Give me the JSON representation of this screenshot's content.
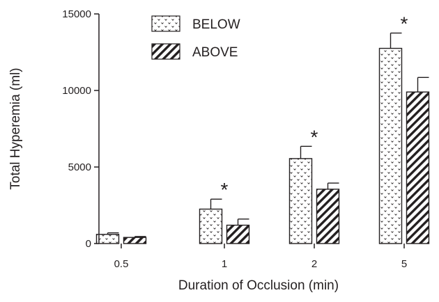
{
  "chart_data": {
    "type": "bar",
    "title": "",
    "xlabel": "Duration of Occlusion (min)",
    "ylabel": "Total Hyperemia (ml)",
    "categories": [
      "0.5",
      "1",
      "2",
      "5"
    ],
    "ylim": [
      0,
      15000
    ],
    "yticks": [
      0,
      5000,
      10000,
      15000
    ],
    "grid": false,
    "legend_position": "top-left",
    "series": [
      {
        "name": "BELOW",
        "pattern": "dotted",
        "values": [
          600,
          2250,
          5550,
          12750
        ],
        "errors": [
          100,
          650,
          800,
          1000
        ]
      },
      {
        "name": "ABOVE",
        "pattern": "hatched",
        "values": [
          400,
          1200,
          3550,
          9900
        ],
        "errors": [
          60,
          400,
          400,
          950
        ]
      }
    ],
    "annotations": [
      {
        "category": "1",
        "text": "*"
      },
      {
        "category": "2",
        "text": "*"
      },
      {
        "category": "5",
        "text": "*"
      }
    ],
    "colors": {
      "ink": "#231f20",
      "background": "#ffffff"
    }
  }
}
